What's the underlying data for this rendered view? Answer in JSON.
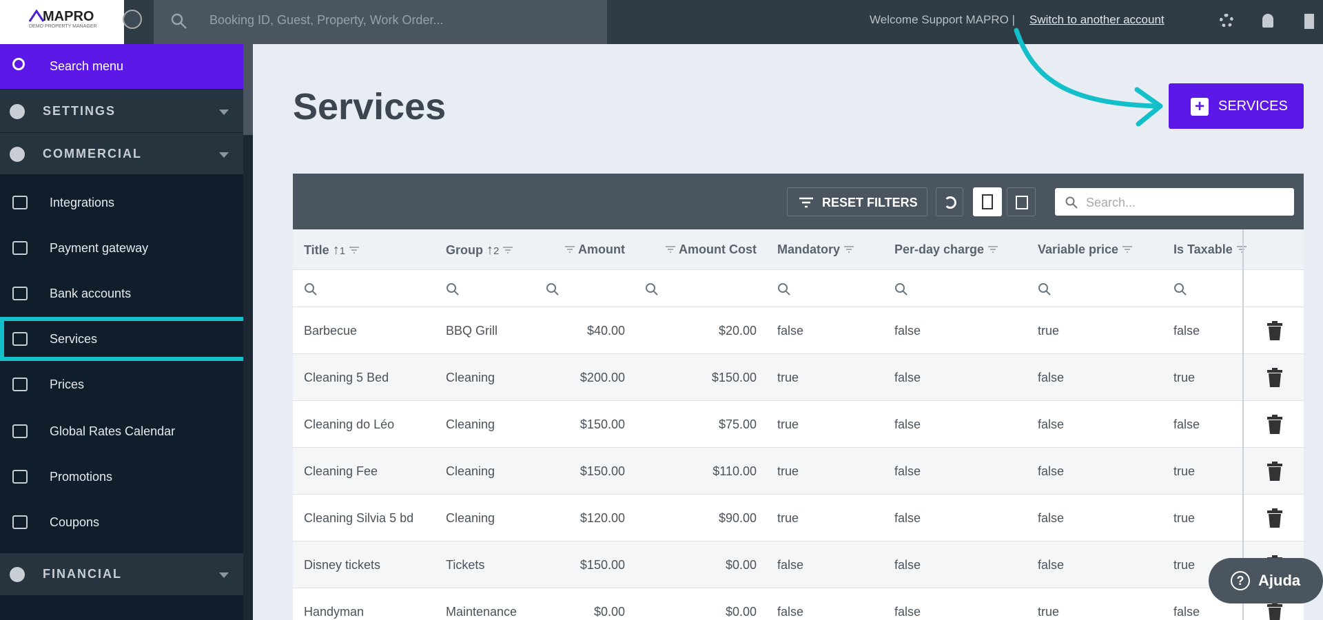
{
  "header": {
    "logo": "MAPRO",
    "logo_subtitle": "DEMO PROPERTY MANAGER",
    "search_placeholder": "Booking ID, Guest, Property, Work Order...",
    "welcome": "Welcome Support MAPRO |",
    "switch_account": "Switch to another account"
  },
  "sidebar": {
    "search": "Search menu",
    "settings": "SETTINGS",
    "commercial": "COMMERCIAL",
    "items": [
      "Integrations",
      "Payment gateway",
      "Bank accounts",
      "Services",
      "Prices",
      "Global Rates Calendar",
      "Promotions",
      "Coupons"
    ],
    "financial": "FINANCIAL"
  },
  "page": {
    "title": "Services",
    "add_button": "SERVICES"
  },
  "toolbar": {
    "reset_filters": "RESET FILTERS",
    "search_placeholder": "Search..."
  },
  "table": {
    "columns": [
      {
        "label": "Title",
        "sort": "1"
      },
      {
        "label": "Group",
        "sort": "2"
      },
      {
        "label": "Amount"
      },
      {
        "label": "Amount Cost"
      },
      {
        "label": "Mandatory"
      },
      {
        "label": "Per-day charge"
      },
      {
        "label": "Variable price"
      },
      {
        "label": "Is Taxable"
      }
    ],
    "rows": [
      [
        "Barbecue",
        "BBQ Grill",
        "$40.00",
        "$20.00",
        "false",
        "false",
        "true",
        "false"
      ],
      [
        "Cleaning 5 Bed",
        "Cleaning",
        "$200.00",
        "$150.00",
        "true",
        "false",
        "false",
        "true"
      ],
      [
        "Cleaning do Léo",
        "Cleaning",
        "$150.00",
        "$75.00",
        "true",
        "false",
        "false",
        "false"
      ],
      [
        "Cleaning Fee",
        "Cleaning",
        "$150.00",
        "$110.00",
        "true",
        "false",
        "false",
        "true"
      ],
      [
        "Cleaning Silvia 5 bd",
        "Cleaning",
        "$120.00",
        "$90.00",
        "true",
        "false",
        "false",
        "true"
      ],
      [
        "Disney tickets",
        "Tickets",
        "$150.00",
        "$0.00",
        "false",
        "false",
        "false",
        "true"
      ],
      [
        "Handyman",
        "Maintenance",
        "$0.00",
        "$0.00",
        "false",
        "false",
        "true",
        "false"
      ]
    ]
  },
  "help": {
    "label": "Ajuda"
  }
}
